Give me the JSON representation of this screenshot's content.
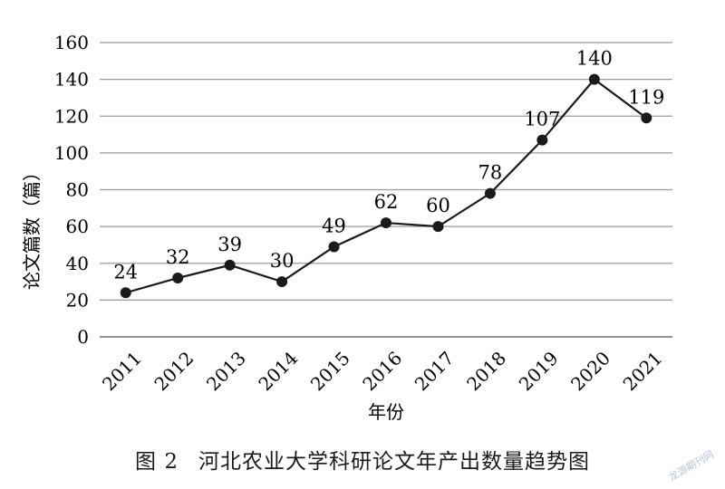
{
  "chart_data": {
    "type": "line",
    "categories": [
      "2011",
      "2012",
      "2013",
      "2014",
      "2015",
      "2016",
      "2017",
      "2018",
      "2019",
      "2020",
      "2021"
    ],
    "series": [
      {
        "values": [
          24,
          32,
          39,
          30,
          49,
          62,
          60,
          78,
          107,
          140,
          119
        ]
      }
    ],
    "xlabel": "年份",
    "ylabel": "论文篇数（篇）",
    "ylim": [
      0,
      160
    ],
    "yticks": [
      0,
      20,
      40,
      60,
      80,
      100,
      120,
      140,
      160
    ],
    "grid": true,
    "data_labels": true,
    "line_color": "#1a1a1a"
  },
  "caption": {
    "figure_number": "图 2",
    "text": "河北农业大学科研论文年产出数量趋势图"
  },
  "watermark": "龙源期刊网"
}
